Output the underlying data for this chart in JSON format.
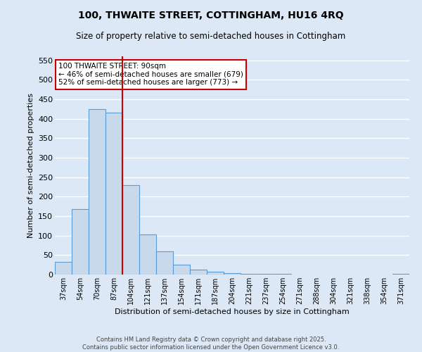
{
  "title": "100, THWAITE STREET, COTTINGHAM, HU16 4RQ",
  "subtitle": "Size of property relative to semi-detached houses in Cottingham",
  "xlabel": "Distribution of semi-detached houses by size in Cottingham",
  "ylabel": "Number of semi-detached properties",
  "categories": [
    "37sqm",
    "54sqm",
    "70sqm",
    "87sqm",
    "104sqm",
    "121sqm",
    "137sqm",
    "154sqm",
    "171sqm",
    "187sqm",
    "204sqm",
    "221sqm",
    "237sqm",
    "254sqm",
    "271sqm",
    "288sqm",
    "304sqm",
    "321sqm",
    "338sqm",
    "354sqm",
    "371sqm"
  ],
  "values": [
    33,
    168,
    425,
    415,
    230,
    103,
    60,
    25,
    12,
    8,
    3,
    2,
    1,
    1,
    0,
    0,
    0,
    0,
    0,
    0,
    2
  ],
  "bar_color": "#c9d9ec",
  "bar_edge_color": "#5b9bd5",
  "background_color": "#dce8f5",
  "grid_color": "#ffffff",
  "vline_color": "#cc0000",
  "annotation_text": "100 THWAITE STREET: 90sqm\n← 46% of semi-detached houses are smaller (679)\n52% of semi-detached houses are larger (773) →",
  "annotation_box_color": "#ffffff",
  "annotation_box_edge": "#cc0000",
  "footer": "Contains HM Land Registry data © Crown copyright and database right 2025.\nContains public sector information licensed under the Open Government Licence v3.0.",
  "ylim": [
    0,
    560
  ],
  "yticks": [
    0,
    50,
    100,
    150,
    200,
    250,
    300,
    350,
    400,
    450,
    500,
    550
  ]
}
